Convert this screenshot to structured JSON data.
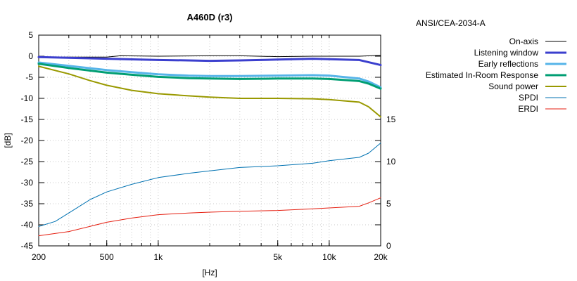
{
  "chart_data": {
    "type": "line",
    "title": "A460D (r3)",
    "subtitle": "ANSI/CEA-2034-A",
    "xlabel": "[Hz]",
    "ylabel": "[dB]",
    "x_scale": "log",
    "xlim": [
      200,
      20000
    ],
    "ylim": [
      -45,
      5
    ],
    "y2lim": [
      0,
      25
    ],
    "grid": true,
    "legend_position": "right",
    "xticks": [
      {
        "value": 200,
        "label": "200"
      },
      {
        "value": 500,
        "label": "500"
      },
      {
        "value": 1000,
        "label": "1k"
      },
      {
        "value": 5000,
        "label": "5k"
      },
      {
        "value": 10000,
        "label": "10k"
      },
      {
        "value": 20000,
        "label": "20k"
      }
    ],
    "yticks": [
      {
        "value": 5,
        "label": "5"
      },
      {
        "value": 0,
        "label": "0"
      },
      {
        "value": -5,
        "label": "-5"
      },
      {
        "value": -10,
        "label": "-10"
      },
      {
        "value": -15,
        "label": "-15"
      },
      {
        "value": -20,
        "label": "-20"
      },
      {
        "value": -25,
        "label": "-25"
      },
      {
        "value": -30,
        "label": "-30"
      },
      {
        "value": -35,
        "label": "-35"
      },
      {
        "value": -40,
        "label": "-40"
      },
      {
        "value": -45,
        "label": "-45"
      }
    ],
    "y2ticks": [
      {
        "value": 15,
        "label": "15"
      },
      {
        "value": 10,
        "label": "10"
      },
      {
        "value": 5,
        "label": "5"
      },
      {
        "value": 0,
        "label": "0"
      }
    ],
    "series": [
      {
        "name": "On-axis",
        "axis": "y",
        "color": "#000000",
        "width": 1,
        "points": [
          [
            200,
            -0.2
          ],
          [
            500,
            -0.2
          ],
          [
            600,
            0.1
          ],
          [
            1000,
            0
          ],
          [
            2000,
            0.1
          ],
          [
            3000,
            0.1
          ],
          [
            5000,
            -0.1
          ],
          [
            8000,
            0
          ],
          [
            10000,
            0
          ],
          [
            15000,
            0
          ],
          [
            20000,
            0.2
          ]
        ]
      },
      {
        "name": "Listening window",
        "axis": "y",
        "color": "#3b3fce",
        "width": 3,
        "points": [
          [
            200,
            -0.2
          ],
          [
            500,
            -0.6
          ],
          [
            1000,
            -0.9
          ],
          [
            1500,
            -1.0
          ],
          [
            2000,
            -1.1
          ],
          [
            3000,
            -1.0
          ],
          [
            5000,
            -0.8
          ],
          [
            8000,
            -0.6
          ],
          [
            10000,
            -0.7
          ],
          [
            15000,
            -0.9
          ],
          [
            20000,
            -2.1
          ]
        ]
      },
      {
        "name": "Early reflections",
        "axis": "y",
        "color": "#56b4e9",
        "width": 3,
        "points": [
          [
            200,
            -1.5
          ],
          [
            300,
            -2.3
          ],
          [
            500,
            -3.3
          ],
          [
            700,
            -3.8
          ],
          [
            1000,
            -4.3
          ],
          [
            1500,
            -4.6
          ],
          [
            2000,
            -4.7
          ],
          [
            3000,
            -4.7
          ],
          [
            5000,
            -4.6
          ],
          [
            8000,
            -4.5
          ],
          [
            10000,
            -4.6
          ],
          [
            15000,
            -5.3
          ],
          [
            17000,
            -6.0
          ],
          [
            20000,
            -7.4
          ]
        ]
      },
      {
        "name": "Estimated In-Room Response",
        "axis": "y",
        "color": "#009e73",
        "width": 3,
        "points": [
          [
            200,
            -1.8
          ],
          [
            300,
            -2.8
          ],
          [
            500,
            -3.9
          ],
          [
            700,
            -4.4
          ],
          [
            1000,
            -4.9
          ],
          [
            1500,
            -5.2
          ],
          [
            2000,
            -5.3
          ],
          [
            3000,
            -5.4
          ],
          [
            5000,
            -5.3
          ],
          [
            8000,
            -5.3
          ],
          [
            10000,
            -5.4
          ],
          [
            15000,
            -5.9
          ],
          [
            17000,
            -6.5
          ],
          [
            20000,
            -7.7
          ]
        ]
      },
      {
        "name": "Sound power",
        "axis": "y",
        "color": "#999900",
        "width": 2,
        "points": [
          [
            200,
            -2.4
          ],
          [
            300,
            -4.2
          ],
          [
            400,
            -5.8
          ],
          [
            500,
            -6.9
          ],
          [
            700,
            -8.1
          ],
          [
            1000,
            -8.9
          ],
          [
            1500,
            -9.4
          ],
          [
            2000,
            -9.7
          ],
          [
            3000,
            -10.0
          ],
          [
            5000,
            -10.0
          ],
          [
            8000,
            -10.1
          ],
          [
            10000,
            -10.3
          ],
          [
            15000,
            -10.9
          ],
          [
            17000,
            -12.0
          ],
          [
            20000,
            -14.4
          ]
        ]
      },
      {
        "name": "SPDI",
        "axis": "y2",
        "color": "#0072b2",
        "width": 1,
        "points": [
          [
            200,
            2.3
          ],
          [
            250,
            2.9
          ],
          [
            300,
            3.9
          ],
          [
            400,
            5.5
          ],
          [
            500,
            6.4
          ],
          [
            700,
            7.3
          ],
          [
            1000,
            8.1
          ],
          [
            1500,
            8.6
          ],
          [
            2000,
            8.9
          ],
          [
            3000,
            9.3
          ],
          [
            5000,
            9.5
          ],
          [
            8000,
            9.8
          ],
          [
            10000,
            10.1
          ],
          [
            15000,
            10.5
          ],
          [
            17000,
            11.0
          ],
          [
            20000,
            12.2
          ]
        ]
      },
      {
        "name": "ERDI",
        "axis": "y2",
        "color": "#e51e10",
        "width": 1,
        "points": [
          [
            200,
            1.2
          ],
          [
            300,
            1.7
          ],
          [
            500,
            2.8
          ],
          [
            700,
            3.3
          ],
          [
            1000,
            3.7
          ],
          [
            1500,
            3.9
          ],
          [
            2000,
            4.0
          ],
          [
            3000,
            4.1
          ],
          [
            5000,
            4.2
          ],
          [
            8000,
            4.4
          ],
          [
            10000,
            4.5
          ],
          [
            15000,
            4.7
          ],
          [
            17000,
            5.1
          ],
          [
            20000,
            5.7
          ]
        ]
      }
    ]
  }
}
